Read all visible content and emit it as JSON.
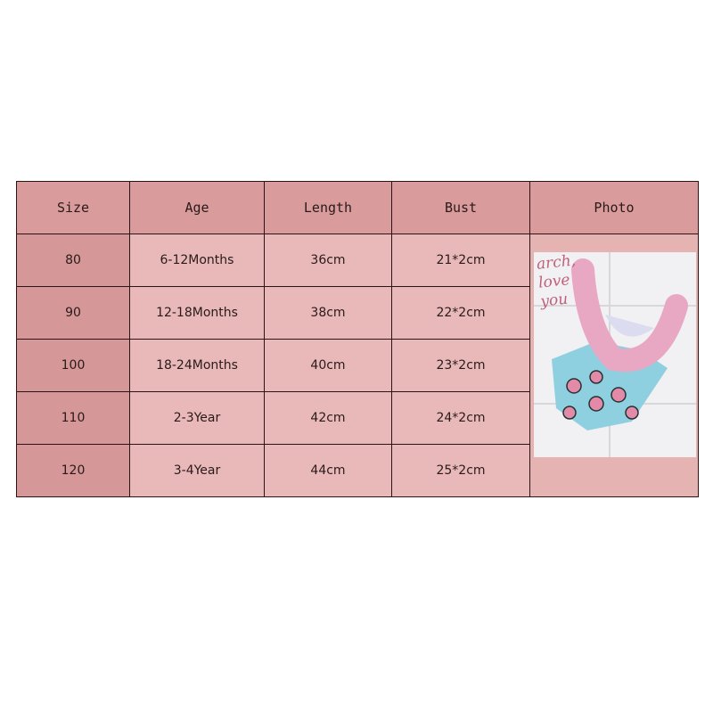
{
  "table": {
    "headers": [
      "Size",
      "Age",
      "Length",
      "Bust",
      "Photo"
    ],
    "rows": [
      {
        "size": "80",
        "age": "6-12Months",
        "length": "36cm",
        "bust": "21*2cm"
      },
      {
        "size": "90",
        "age": "12-18Months",
        "length": "38cm",
        "bust": "22*2cm"
      },
      {
        "size": "100",
        "age": "18-24Months",
        "length": "40cm",
        "bust": "23*2cm"
      },
      {
        "size": "110",
        "age": "2-3Year",
        "length": "42cm",
        "bust": "24*2cm"
      },
      {
        "size": "120",
        "age": "3-4Year",
        "length": "44cm",
        "bust": "25*2cm"
      }
    ]
  },
  "photo": {
    "handwriting": "arch, love you",
    "colors": {
      "swimsuit": "#8fd0e0",
      "ruffle": "#e8a8c4",
      "background": "#f1f1f3"
    }
  },
  "colors": {
    "header": "#d99b9b",
    "size_column": "#d59797",
    "body": "#e9b9b9",
    "border": "#2a1414"
  }
}
